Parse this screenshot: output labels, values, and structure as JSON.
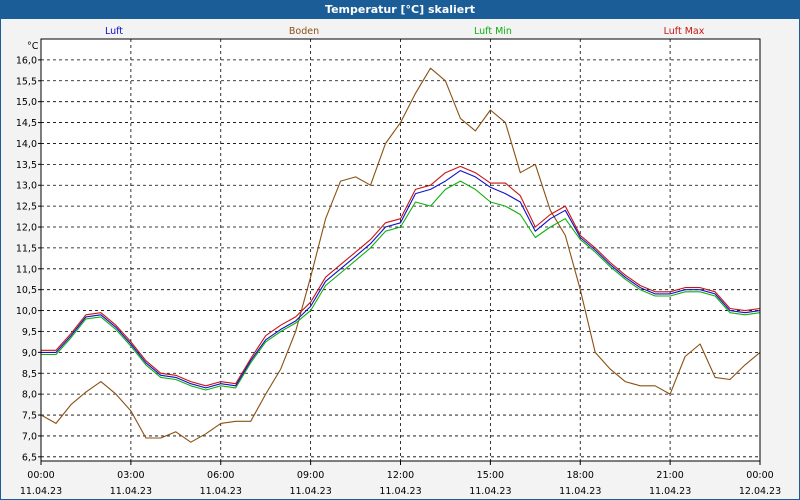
{
  "window": {
    "title": "Temperatur [°C] skaliert"
  },
  "chart_data": {
    "type": "line",
    "title": "Temperatur [°C] skaliert",
    "ylabel": "°C",
    "ylim": [
      6.4,
      16.5
    ],
    "yticks": [
      "6,5",
      "7,0",
      "7,5",
      "8,0",
      "8,5",
      "9,0",
      "9,5",
      "10,0",
      "10,5",
      "11,0",
      "11,5",
      "12,0",
      "12,5",
      "13,0",
      "13,5",
      "14,0",
      "14,5",
      "15,0",
      "15,5",
      "16,0"
    ],
    "xlim": [
      0,
      24
    ],
    "xticks": [
      {
        "time": "00:00",
        "date": "11.04.23"
      },
      {
        "time": "03:00",
        "date": "11.04.23"
      },
      {
        "time": "06:00",
        "date": "11.04.23"
      },
      {
        "time": "09:00",
        "date": "11.04.23"
      },
      {
        "time": "12:00",
        "date": "11.04.23"
      },
      {
        "time": "15:00",
        "date": "11.04.23"
      },
      {
        "time": "18:00",
        "date": "11.04.23"
      },
      {
        "time": "21:00",
        "date": "11.04.23"
      },
      {
        "time": "00:00",
        "date": "12.04.23"
      }
    ],
    "grid": true,
    "legend_position": "top",
    "series": [
      {
        "name": "Luft",
        "color": "#1010c8",
        "x": [
          0,
          0.5,
          1,
          1.5,
          2,
          2.5,
          3,
          3.5,
          4,
          4.5,
          5,
          5.5,
          6,
          6.5,
          7,
          7.5,
          8,
          8.5,
          9,
          9.5,
          10,
          10.5,
          11,
          11.5,
          12,
          12.5,
          13,
          13.5,
          14,
          14.5,
          15,
          15.5,
          16,
          16.5,
          17,
          17.5,
          18,
          18.5,
          19,
          19.5,
          20,
          20.5,
          21,
          21.5,
          22,
          22.5,
          23,
          23.5,
          24
        ],
        "y": [
          9.0,
          9.0,
          9.4,
          9.85,
          9.9,
          9.6,
          9.2,
          8.75,
          8.45,
          8.4,
          8.25,
          8.15,
          8.25,
          8.2,
          8.8,
          9.3,
          9.55,
          9.75,
          10.1,
          10.7,
          11.0,
          11.3,
          11.6,
          12.0,
          12.1,
          12.8,
          12.9,
          13.1,
          13.35,
          13.2,
          12.95,
          12.8,
          12.6,
          11.9,
          12.2,
          12.4,
          11.75,
          11.45,
          11.1,
          10.8,
          10.55,
          10.4,
          10.4,
          10.5,
          10.5,
          10.4,
          10.0,
          9.95,
          10.0
        ]
      },
      {
        "name": "Boden",
        "color": "#8b5014",
        "x": [
          0,
          0.5,
          1,
          1.5,
          2,
          2.5,
          3,
          3.5,
          4,
          4.5,
          5,
          5.5,
          6,
          6.5,
          7,
          7.5,
          8,
          8.5,
          9,
          9.5,
          10,
          10.5,
          11,
          11.5,
          12,
          12.5,
          13,
          13.5,
          14,
          14.5,
          15,
          15.5,
          16,
          16.5,
          17,
          17.5,
          18,
          18.5,
          19,
          19.5,
          20,
          20.5,
          21,
          21.5,
          22,
          22.5,
          23,
          23.5,
          24
        ],
        "y": [
          7.5,
          7.3,
          7.75,
          8.05,
          8.3,
          8.0,
          7.6,
          6.95,
          6.95,
          7.1,
          6.85,
          7.05,
          7.3,
          7.35,
          7.35,
          8.0,
          8.6,
          9.5,
          10.8,
          12.2,
          13.1,
          13.2,
          13.0,
          14.0,
          14.5,
          15.2,
          15.8,
          15.5,
          14.6,
          14.3,
          14.8,
          14.5,
          13.3,
          13.5,
          12.4,
          11.8,
          10.5,
          9.0,
          8.6,
          8.3,
          8.2,
          8.2,
          8.0,
          8.9,
          9.2,
          8.4,
          8.35,
          8.7,
          9.0
        ]
      },
      {
        "name": "Luft Min",
        "color": "#10b010",
        "x": [
          0,
          0.5,
          1,
          1.5,
          2,
          2.5,
          3,
          3.5,
          4,
          4.5,
          5,
          5.5,
          6,
          6.5,
          7,
          7.5,
          8,
          8.5,
          9,
          9.5,
          10,
          10.5,
          11,
          11.5,
          12,
          12.5,
          13,
          13.5,
          14,
          14.5,
          15,
          15.5,
          16,
          16.5,
          17,
          17.5,
          18,
          18.5,
          19,
          19.5,
          20,
          20.5,
          21,
          21.5,
          22,
          22.5,
          23,
          23.5,
          24
        ],
        "y": [
          8.95,
          8.95,
          9.35,
          9.8,
          9.85,
          9.55,
          9.15,
          8.7,
          8.4,
          8.35,
          8.2,
          8.1,
          8.2,
          8.15,
          8.75,
          9.25,
          9.5,
          9.7,
          10.0,
          10.6,
          10.9,
          11.2,
          11.5,
          11.9,
          12.0,
          12.6,
          12.5,
          12.9,
          13.1,
          12.9,
          12.6,
          12.5,
          12.3,
          11.75,
          12.0,
          12.2,
          11.7,
          11.4,
          11.05,
          10.75,
          10.5,
          10.35,
          10.35,
          10.45,
          10.45,
          10.35,
          9.95,
          9.9,
          9.95
        ]
      },
      {
        "name": "Luft Max",
        "color": "#c81414",
        "x": [
          0,
          0.5,
          1,
          1.5,
          2,
          2.5,
          3,
          3.5,
          4,
          4.5,
          5,
          5.5,
          6,
          6.5,
          7,
          7.5,
          8,
          8.5,
          9,
          9.5,
          10,
          10.5,
          11,
          11.5,
          12,
          12.5,
          13,
          13.5,
          14,
          14.5,
          15,
          15.5,
          16,
          16.5,
          17,
          17.5,
          18,
          18.5,
          19,
          19.5,
          20,
          20.5,
          21,
          21.5,
          22,
          22.5,
          23,
          23.5,
          24
        ],
        "y": [
          9.05,
          9.05,
          9.45,
          9.9,
          9.95,
          9.65,
          9.25,
          8.8,
          8.5,
          8.45,
          8.3,
          8.2,
          8.3,
          8.25,
          8.85,
          9.4,
          9.65,
          9.85,
          10.2,
          10.8,
          11.1,
          11.4,
          11.7,
          12.1,
          12.2,
          12.9,
          13.0,
          13.3,
          13.45,
          13.3,
          13.05,
          13.05,
          12.75,
          12.0,
          12.3,
          12.5,
          11.8,
          11.5,
          11.15,
          10.85,
          10.6,
          10.45,
          10.45,
          10.55,
          10.55,
          10.45,
          10.05,
          10.0,
          10.05
        ]
      }
    ]
  }
}
